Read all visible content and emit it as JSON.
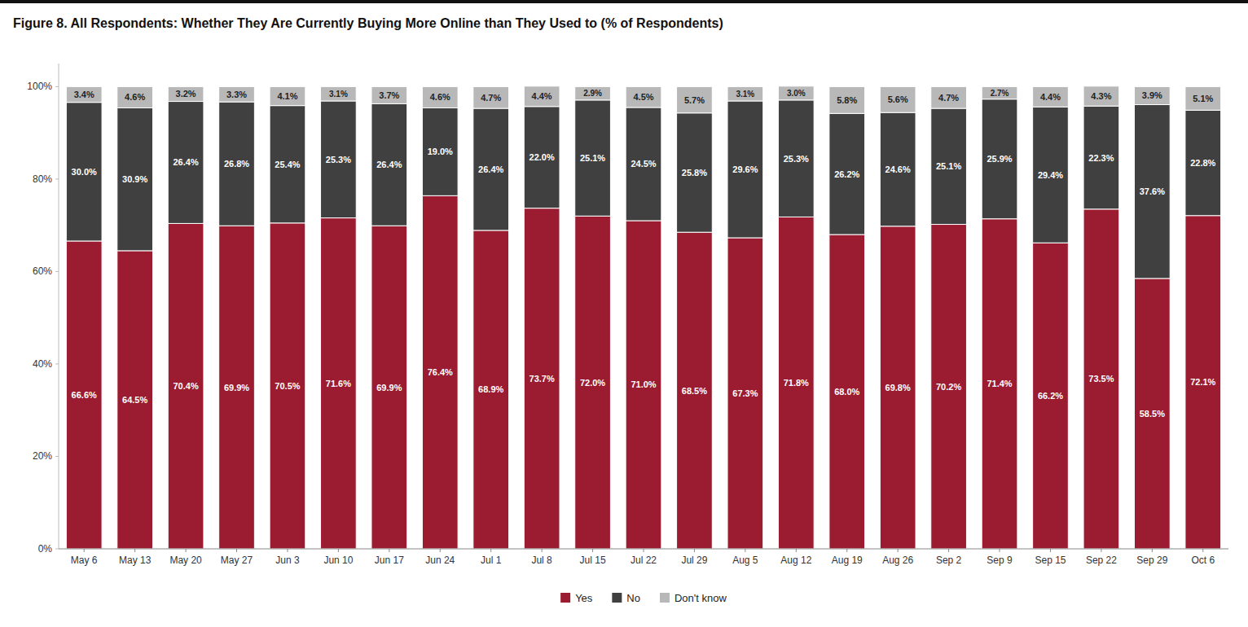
{
  "chart_data": {
    "type": "bar",
    "stacked": true,
    "title": "Figure 8. All Respondents: Whether They Are Currently Buying More Online than They Used to (% of Respondents)",
    "categories": [
      "May 6",
      "May 13",
      "May 20",
      "May 27",
      "Jun 3",
      "Jun 10",
      "Jun 17",
      "Jun 24",
      "Jul 1",
      "Jul 8",
      "Jul 15",
      "Jul 22",
      "Jul 29",
      "Aug 5",
      "Aug 12",
      "Aug 19",
      "Aug 26",
      "Sep 2",
      "Sep 9",
      "Sep 15",
      "Sep 22",
      "Sep 29",
      "Oct 6"
    ],
    "series": [
      {
        "name": "Yes",
        "color": "#9B1B30",
        "values": [
          66.6,
          64.5,
          70.4,
          69.9,
          70.5,
          71.6,
          69.9,
          76.4,
          68.9,
          73.7,
          72.0,
          71.0,
          68.5,
          67.3,
          71.8,
          68.0,
          69.8,
          70.2,
          71.4,
          66.2,
          73.5,
          58.5,
          72.1
        ],
        "value_labels": [
          "66.6%",
          "64.5%",
          "70.4%",
          "69.9%",
          "70.5%",
          "71.6%",
          "69.9%",
          "76.4%",
          "68.9%",
          "73.7%",
          "72.0%",
          "71.0%",
          "68.5%",
          "67.3%",
          "71.8%",
          "68.0%",
          "69.8%",
          "70.2%",
          "71.4%",
          "66.2%",
          "73.5%",
          "58.5%",
          "72.1%"
        ]
      },
      {
        "name": "No",
        "color": "#404040",
        "values": [
          30.0,
          30.9,
          26.4,
          26.8,
          25.4,
          25.3,
          26.4,
          19.0,
          26.4,
          22.0,
          25.1,
          24.5,
          25.8,
          29.6,
          25.3,
          26.2,
          24.6,
          25.1,
          25.9,
          29.4,
          22.3,
          37.6,
          22.8
        ],
        "value_labels": [
          "30.0%",
          "30.9%",
          "26.4%",
          "26.8%",
          "25.4%",
          "25.3%",
          "26.4%",
          "19.0%",
          "26.4%",
          "22.0%",
          "25.1%",
          "24.5%",
          "25.8%",
          "29.6%",
          "25.3%",
          "26.2%",
          "24.6%",
          "25.1%",
          "25.9%",
          "29.4%",
          "22.3%",
          "37.6%",
          "22.8%"
        ]
      },
      {
        "name": "Don't know",
        "color": "#B8B8B8",
        "values": [
          3.4,
          4.6,
          3.2,
          3.3,
          4.1,
          3.1,
          3.7,
          4.6,
          4.7,
          4.4,
          2.9,
          4.5,
          5.7,
          3.1,
          3.0,
          5.8,
          5.6,
          4.7,
          2.7,
          4.4,
          4.3,
          3.9,
          5.1
        ],
        "value_labels": [
          "3.4%",
          "4.6%",
          "3.2%",
          "3.3%",
          "4.1%",
          "3.1%",
          "3.7%",
          "4.6%",
          "4.7%",
          "4.4%",
          "2.9%",
          "4.5%",
          "5.7%",
          "3.1%",
          "3.0%",
          "5.8%",
          "5.6%",
          "4.7%",
          "2.7%",
          "4.4%",
          "4.3%",
          "3.9%",
          "5.1%"
        ]
      }
    ],
    "ylim": [
      0,
      105
    ],
    "yticks": [
      {
        "value": 0,
        "label": "0%"
      },
      {
        "value": 20,
        "label": "20%"
      },
      {
        "value": 40,
        "label": "40%"
      },
      {
        "value": 60,
        "label": "60%"
      },
      {
        "value": 80,
        "label": "80%"
      },
      {
        "value": 100,
        "label": "100%"
      }
    ],
    "grid": false,
    "legend": "bottom",
    "data_labels": true
  }
}
